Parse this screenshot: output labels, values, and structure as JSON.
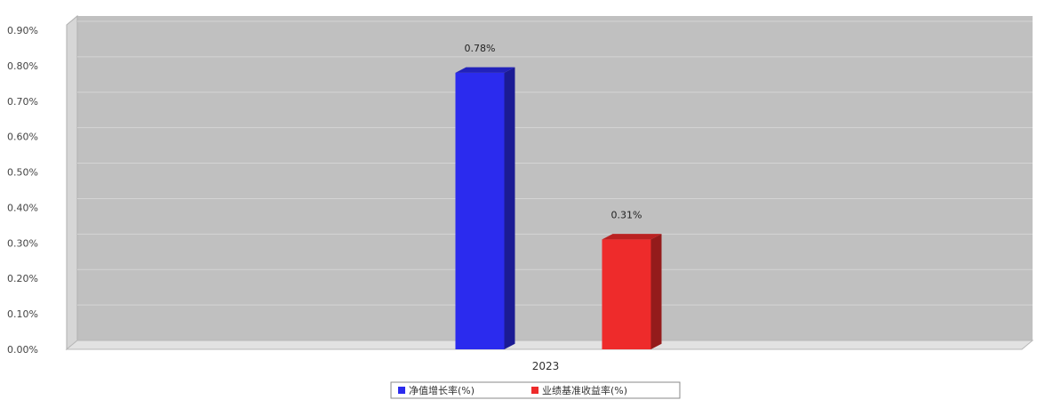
{
  "chart_data": {
    "type": "bar",
    "categories": [
      "2023"
    ],
    "series": [
      {
        "name": "净值增长率(%)",
        "values": [
          0.78
        ],
        "color": "#2b2bee",
        "label": "0.78%"
      },
      {
        "name": "业绩基准收益率(%)",
        "values": [
          0.31
        ],
        "color": "#ee2b2b",
        "label": "0.31%"
      }
    ],
    "ylim": [
      0,
      0.9
    ],
    "yticks": [
      "0.00%",
      "0.10%",
      "0.20%",
      "0.30%",
      "0.40%",
      "0.50%",
      "0.60%",
      "0.70%",
      "0.80%",
      "0.90%"
    ],
    "grid": true,
    "legend_position": "bottom"
  }
}
